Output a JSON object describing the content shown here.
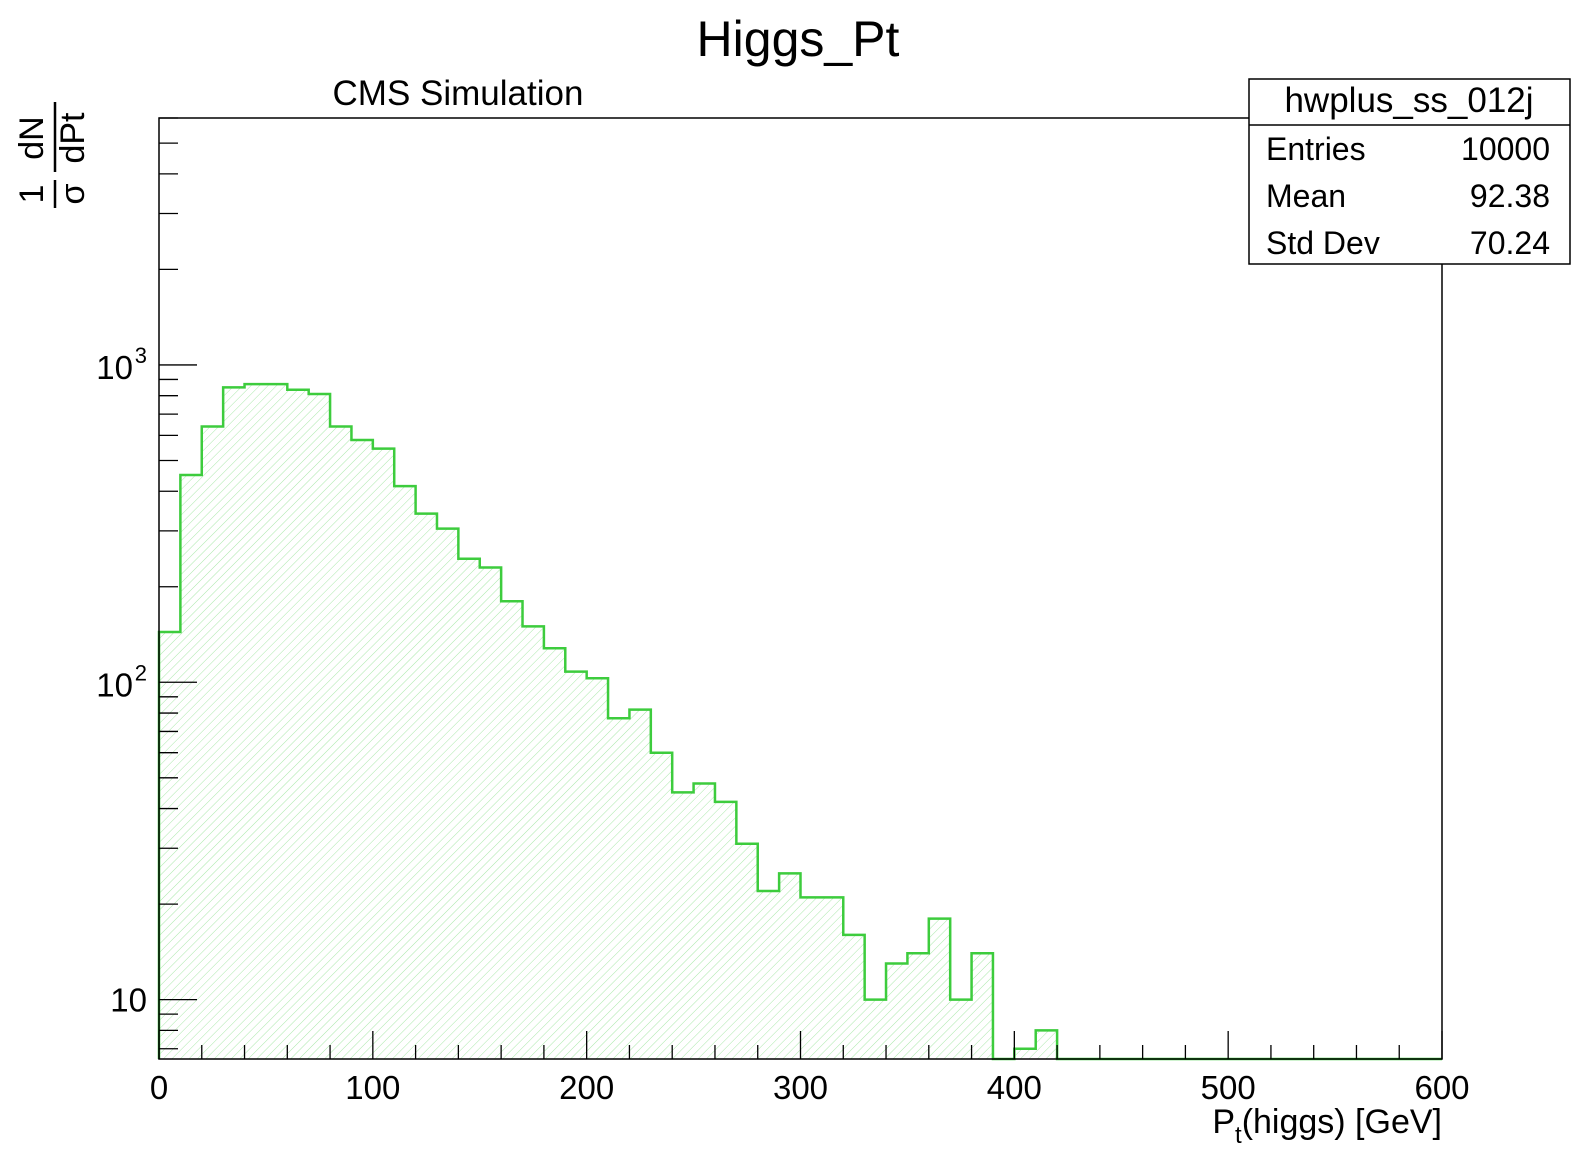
{
  "chart_data": {
    "type": "histogram",
    "title": "Higgs_Pt",
    "subtitle": "CMS Simulation",
    "xlabel_main": "P",
    "xlabel_sub": "t",
    "xlabel_rest": "(higgs) [GeV]",
    "ylabel": {
      "numerator": "1",
      "denominator": "σ",
      "d_top": "dN",
      "d_bottom": "dPt"
    },
    "xlim": [
      0,
      600
    ],
    "ylim_log": [
      6.5,
      6000
    ],
    "y_scale": "log",
    "x_ticks": [
      "0",
      "100",
      "200",
      "300",
      "400",
      "500",
      "600"
    ],
    "x_tick_values": [
      0,
      100,
      200,
      300,
      400,
      500,
      600
    ],
    "y_ticks": [
      {
        "value": 10,
        "base": "10",
        "exp": ""
      },
      {
        "value": 100,
        "base": "10",
        "exp": "2"
      },
      {
        "value": 1000,
        "base": "10",
        "exp": "3"
      }
    ],
    "bin_width": 10,
    "series": [
      {
        "name": "hwplus_ss_012j",
        "color": "#3dcc3d",
        "fill": "hatched",
        "bin_edges_start": 0,
        "values": [
          144,
          450,
          640,
          850,
          870,
          870,
          835,
          810,
          640,
          580,
          545,
          415,
          340,
          305,
          245,
          230,
          180,
          150,
          128,
          108,
          103,
          77,
          82,
          60,
          45,
          48,
          42,
          31,
          22,
          25,
          21,
          21,
          16,
          10,
          13,
          14,
          18,
          10,
          14,
          0,
          7,
          8,
          0,
          0,
          0,
          0,
          0,
          0,
          0,
          0,
          0,
          0,
          0,
          0,
          0,
          0,
          0,
          0,
          0,
          0
        ]
      }
    ],
    "legend_position": "top-right",
    "stats": {
      "name": "hwplus_ss_012j",
      "rows": [
        {
          "label": "Entries",
          "value": "10000"
        },
        {
          "label": "Mean",
          "value": "92.38"
        },
        {
          "label": "Std Dev",
          "value": "70.24"
        }
      ]
    }
  }
}
